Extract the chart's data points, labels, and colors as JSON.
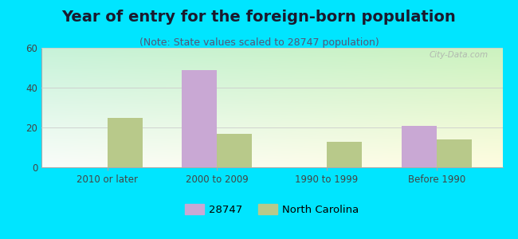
{
  "title": "Year of entry for the foreign-born population",
  "subtitle": "(Note: State values scaled to 28747 population)",
  "categories": [
    "2010 or later",
    "2000 to 2009",
    "1990 to 1999",
    "Before 1990"
  ],
  "values_28747": [
    0,
    49,
    0,
    21
  ],
  "values_nc": [
    25,
    17,
    13,
    14
  ],
  "color_28747": "#c9a8d4",
  "color_nc": "#b8c98a",
  "background_outer": "#00e5ff",
  "ylim": [
    0,
    60
  ],
  "yticks": [
    0,
    20,
    40,
    60
  ],
  "legend_labels": [
    "28747",
    "North Carolina"
  ],
  "bar_width": 0.32,
  "title_fontsize": 14,
  "subtitle_fontsize": 9,
  "title_color": "#1a1a2e",
  "subtitle_color": "#555577"
}
